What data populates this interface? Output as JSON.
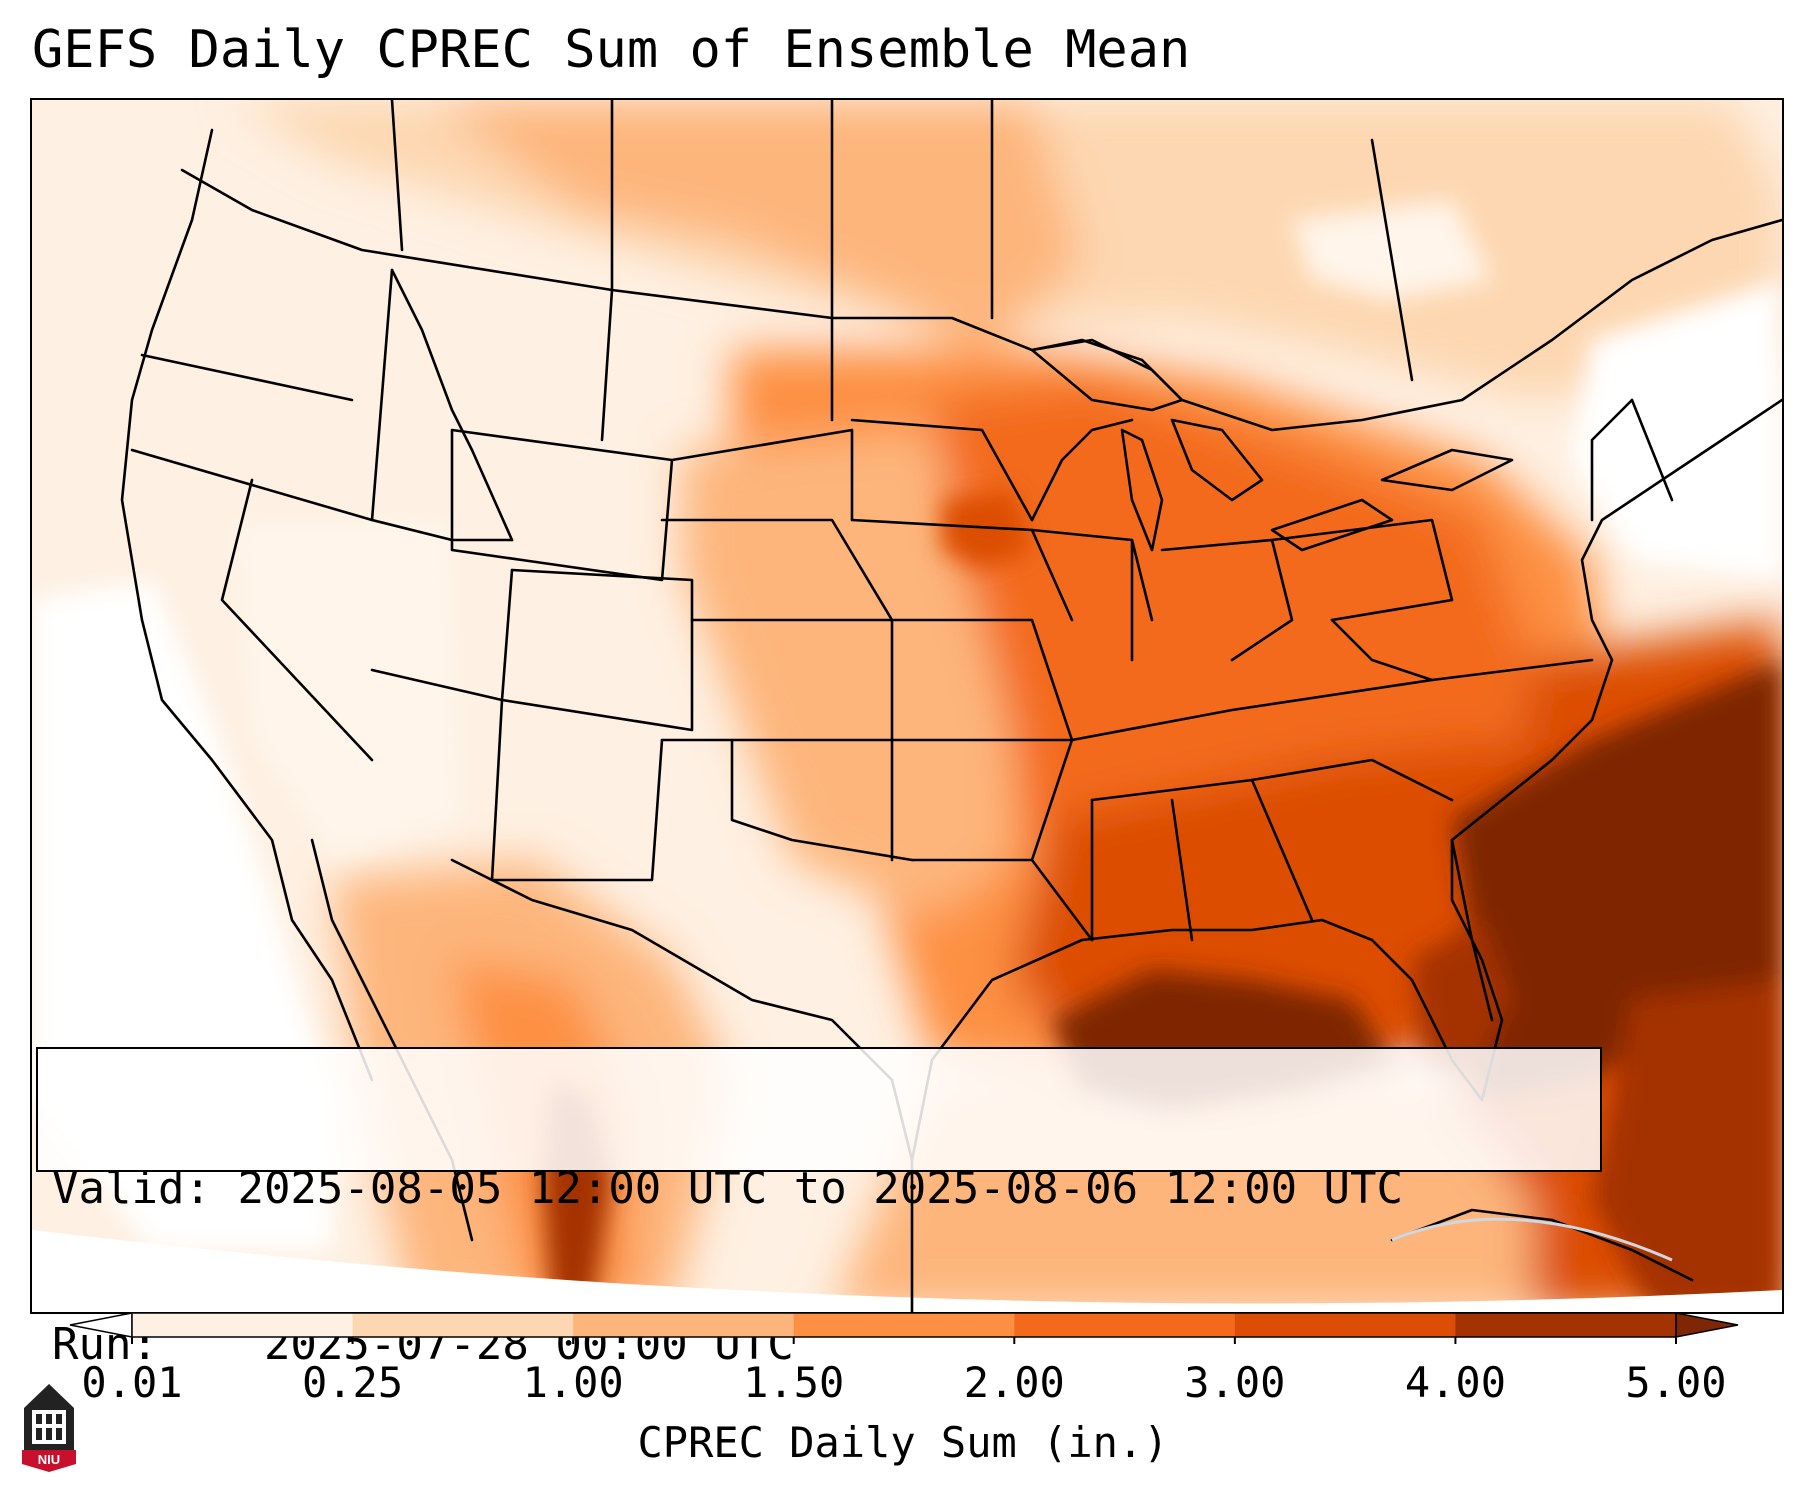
{
  "title": "GEFS Daily CPREC Sum of Ensemble Mean",
  "info": {
    "valid_label": "Valid:",
    "valid_value": "2025-08-05 12:00 UTC to 2025-08-06 12:00 UTC",
    "run_label": "Run:",
    "run_value": "2025-07-28 00:00 UTC"
  },
  "colorbar": {
    "label": "CPREC Daily Sum (in.)",
    "ticks": [
      "0.01",
      "0.25",
      "1.00",
      "1.50",
      "2.00",
      "3.00",
      "4.00",
      "5.00"
    ],
    "colors": [
      "#fef0e2",
      "#fdd7b1",
      "#fdb57b",
      "#fd9043",
      "#f36b1a",
      "#dc4d06",
      "#a43302",
      "#7f2704"
    ],
    "extend": "both"
  },
  "logo": {
    "icon": "niu-university-logo-icon",
    "text": "NIU",
    "color": "#c8102e"
  },
  "map": {
    "projection": "lambert-conformal",
    "region": "contiguous United States, southern Canada, northern Mexico, Gulf of Mexico, western Atlantic",
    "max_precip_region": "western Atlantic off the Southeast coast and northern Gulf of Mexico"
  }
}
